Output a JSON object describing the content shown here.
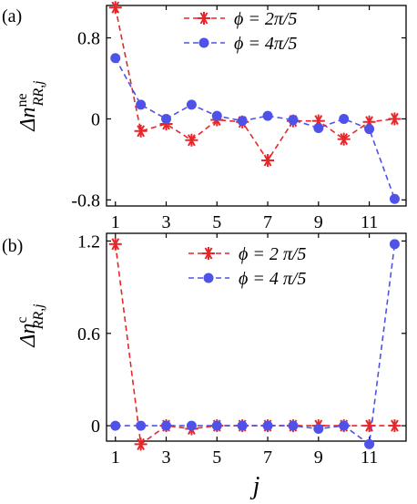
{
  "chart_data": [
    {
      "type": "line",
      "panel_label": "(a)",
      "ylabel_main": "Δn",
      "ylabel_sup": "ne",
      "ylabel_sub": "RR,j",
      "x": [
        1,
        2,
        3,
        4,
        5,
        6,
        7,
        8,
        9,
        10,
        11,
        12
      ],
      "xticks": [
        "1",
        "3",
        "5",
        "7",
        "9",
        "11"
      ],
      "yticks": [
        {
          "value": 0.8,
          "label": "0.8"
        },
        {
          "value": 0,
          "label": "0"
        },
        {
          "value": -0.8,
          "label": "-0.8"
        }
      ],
      "ylim": [
        -0.86,
        1.12
      ],
      "xlim": [
        0.65,
        12.45
      ],
      "legend_position": "top-right",
      "series": [
        {
          "name": "ϕ = 2π/5",
          "color": "#e8262a",
          "marker": "asterisk",
          "values": [
            1.1,
            -0.12,
            -0.05,
            -0.21,
            -0.01,
            -0.03,
            -0.41,
            -0.02,
            -0.02,
            -0.2,
            -0.03,
            0.0
          ]
        },
        {
          "name": "ϕ = 4π/5",
          "color": "#4f52e8",
          "marker": "circle",
          "values": [
            0.6,
            0.14,
            0.0,
            0.14,
            0.03,
            -0.02,
            0.03,
            -0.01,
            -0.09,
            0.0,
            -0.1,
            -0.79
          ]
        }
      ]
    },
    {
      "type": "line",
      "panel_label": "(b)",
      "ylabel_main": "Δn",
      "ylabel_sup": "c",
      "ylabel_sub": "RR,j",
      "xlabel": "j",
      "x": [
        1,
        2,
        3,
        4,
        5,
        6,
        7,
        8,
        9,
        10,
        11,
        12
      ],
      "xticks": [
        "1",
        "3",
        "5",
        "7",
        "9",
        "11"
      ],
      "yticks": [
        {
          "value": 1.2,
          "label": "1.2"
        },
        {
          "value": 0.6,
          "label": "0.6"
        },
        {
          "value": 0,
          "label": "0"
        }
      ],
      "ylim": [
        -0.1,
        1.25
      ],
      "xlim": [
        0.65,
        12.45
      ],
      "legend_position": "top-right",
      "series": [
        {
          "name": "ϕ = 2 π/5",
          "color": "#e8262a",
          "marker": "asterisk",
          "values": [
            1.18,
            -0.12,
            0.0,
            -0.02,
            0.0,
            0.0,
            0.0,
            0.0,
            0.0,
            0.0,
            0.0,
            0.0
          ]
        },
        {
          "name": "ϕ = 4 π/5",
          "color": "#4f52e8",
          "marker": "circle",
          "values": [
            0.0,
            0.0,
            0.0,
            0.0,
            0.0,
            0.0,
            0.0,
            0.0,
            -0.02,
            0.0,
            -0.12,
            1.18
          ]
        }
      ]
    }
  ]
}
